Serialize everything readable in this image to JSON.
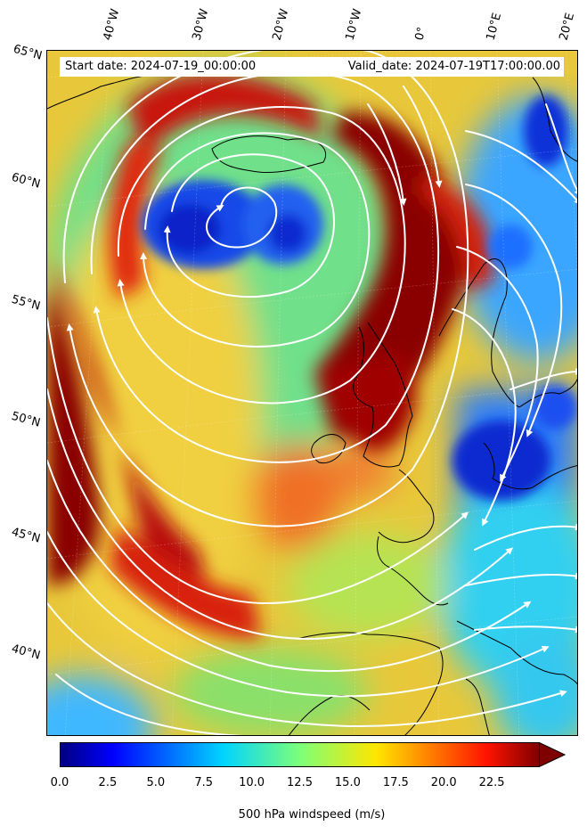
{
  "header": {
    "start_date": "Start date: 2024-07-19_00:00:00",
    "valid_date": "Valid_date: 2024-07-19T17:00:00.00"
  },
  "latitude_labels": [
    "65°N",
    "60°N",
    "55°N",
    "50°N",
    "45°N",
    "40°N"
  ],
  "longitude_labels": [
    "40°W",
    "30°W",
    "20°W",
    "10°W",
    "0°",
    "10°E",
    "20°E"
  ],
  "colorbar": {
    "title": "500 hPa windspeed (m/s)",
    "min": 0,
    "max": 25,
    "extend": "max",
    "ticks": [
      "0.0",
      "2.5",
      "5.0",
      "7.5",
      "10.0",
      "12.5",
      "15.0",
      "17.5",
      "20.0",
      "22.5"
    ],
    "colormap": "jet"
  },
  "colors": {
    "streamline": "#ffffff",
    "coastline": "#000000"
  }
}
